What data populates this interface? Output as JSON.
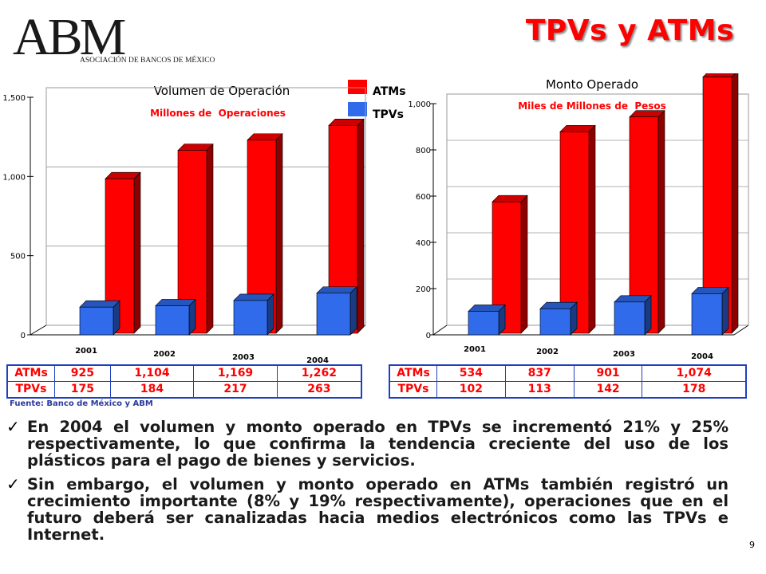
{
  "logo": {
    "letters": "ABM",
    "subtitle": "ASOCIACIÓN DE BANCOS DE MÉXICO"
  },
  "slide_title": "TPVs y ATMs",
  "colors": {
    "atms": "#ff0000",
    "tpvs": "#2f6bea",
    "title": "#ff0000",
    "table_border": "#1f3fbf"
  },
  "legend": {
    "atms": "ATMs",
    "tpvs": "TPVs"
  },
  "chart_data": [
    {
      "type": "bar",
      "title": "Volumen de Operación",
      "subtitle": "Millones de  Operaciones",
      "categories": [
        "2001",
        "2002",
        "2003",
        "2004"
      ],
      "series": [
        {
          "name": "ATMs",
          "values": [
            925,
            1104,
            1169,
            1262
          ]
        },
        {
          "name": "TPVs",
          "values": [
            175,
            184,
            217,
            263
          ]
        }
      ],
      "ylim": [
        0,
        1500
      ],
      "yticks": [
        0,
        500,
        1000,
        1500
      ],
      "ytick_labels": [
        "0",
        "500",
        "1,000",
        "1,500"
      ],
      "legend_position": "top"
    },
    {
      "type": "bar",
      "title": "Monto Operado",
      "subtitle": "Miles de Millones de  Pesos",
      "categories": [
        "2001",
        "2002",
        "2003",
        "2004"
      ],
      "series": [
        {
          "name": "ATMs",
          "values": [
            534,
            837,
            901,
            1074
          ]
        },
        {
          "name": "TPVs",
          "values": [
            102,
            113,
            142,
            178
          ]
        }
      ],
      "ylim": [
        0,
        1000
      ],
      "yticks": [
        0,
        200,
        400,
        600,
        800,
        1000
      ],
      "ytick_labels": [
        "0",
        "200",
        "400",
        "600",
        "800",
        "1,000"
      ]
    }
  ],
  "tables": [
    {
      "rows": [
        {
          "label": "ATMs",
          "values": [
            "925",
            "1,104",
            "1,169",
            "1,262"
          ]
        },
        {
          "label": "TPVs",
          "values": [
            "175",
            "184",
            "217",
            "263"
          ]
        }
      ]
    },
    {
      "rows": [
        {
          "label": "ATMs",
          "values": [
            "534",
            "837",
            "901",
            "1,074"
          ]
        },
        {
          "label": "TPVs",
          "values": [
            "102",
            "113",
            "142",
            "178"
          ]
        }
      ]
    }
  ],
  "source": "Fuente: Banco de México y ABM",
  "bullets": [
    "En 2004 el volumen y monto operado en TPVs se incrementó 21% y 25% respectivamente, lo que confirma la tendencia creciente del uso de los plásticos para el pago de bienes y servicios.",
    "Sin embargo, el volumen y monto operado en ATMs también registró un crecimiento importante (8% y 19% respectivamente), operaciones que en el futuro deberá ser canalizadas hacia medios electrónicos como las TPVs e Internet."
  ],
  "bullet_mark": "✓",
  "page_number": "9"
}
